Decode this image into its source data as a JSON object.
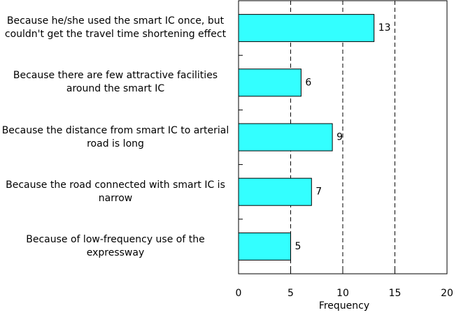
{
  "chart_data": {
    "type": "barh",
    "categories": [
      "Because he/she used the smart IC once, but couldn't get the travel time shortening effect",
      "Because there are few attractive facilities around the smart IC",
      "Because the distance from smart IC to arterial road is long",
      "Because the road connected with smart IC is narrow",
      "Because of low-frequency use of the expressway"
    ],
    "values": [
      13,
      6,
      9,
      7,
      5
    ],
    "color": "#33ffff",
    "xlabel": "Frequency",
    "xlim": [
      0,
      20
    ],
    "xticks": [
      0,
      5,
      10,
      15,
      20
    ],
    "grid": true
  }
}
